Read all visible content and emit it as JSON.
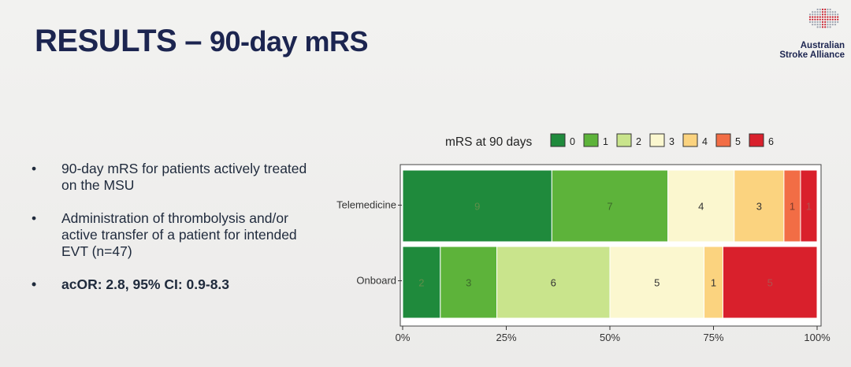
{
  "slide": {
    "title_main": "RESULTS",
    "title_dash": "–",
    "title_sub": "90-day mRS",
    "logo_line1": "Australian",
    "logo_line2": "Stroke Alliance",
    "bullets": [
      "90-day mRS for patients actively treated on the MSU",
      "Administration of thrombolysis and/or active transfer of a patient for intended EVT (n=47)",
      "acOR: 2.8, 95% CI: 0.9-8.3"
    ]
  },
  "chart_data": {
    "type": "bar",
    "orientation": "horizontal",
    "stacked": "percent",
    "legend_title": "mRS at 90 days",
    "legend_placement": "top",
    "categories": [
      "Telemedicine",
      "Onboard"
    ],
    "series": [
      {
        "name": "0",
        "color": "#1f8a3c",
        "values": [
          9,
          2
        ]
      },
      {
        "name": "1",
        "color": "#5db33a",
        "values": [
          7,
          3
        ]
      },
      {
        "name": "2",
        "color": "#c9e48c",
        "values": [
          0,
          6
        ]
      },
      {
        "name": "3",
        "color": "#fbf7cf",
        "values": [
          4,
          5
        ]
      },
      {
        "name": "4",
        "color": "#fbd37f",
        "values": [
          3,
          1
        ]
      },
      {
        "name": "5",
        "color": "#f26d45",
        "values": [
          1,
          0
        ]
      },
      {
        "name": "6",
        "color": "#d9202c",
        "values": [
          1,
          5
        ]
      }
    ],
    "x_ticks": [
      "0%",
      "25%",
      "50%",
      "75%",
      "100%"
    ],
    "xlim": [
      0,
      100
    ]
  }
}
